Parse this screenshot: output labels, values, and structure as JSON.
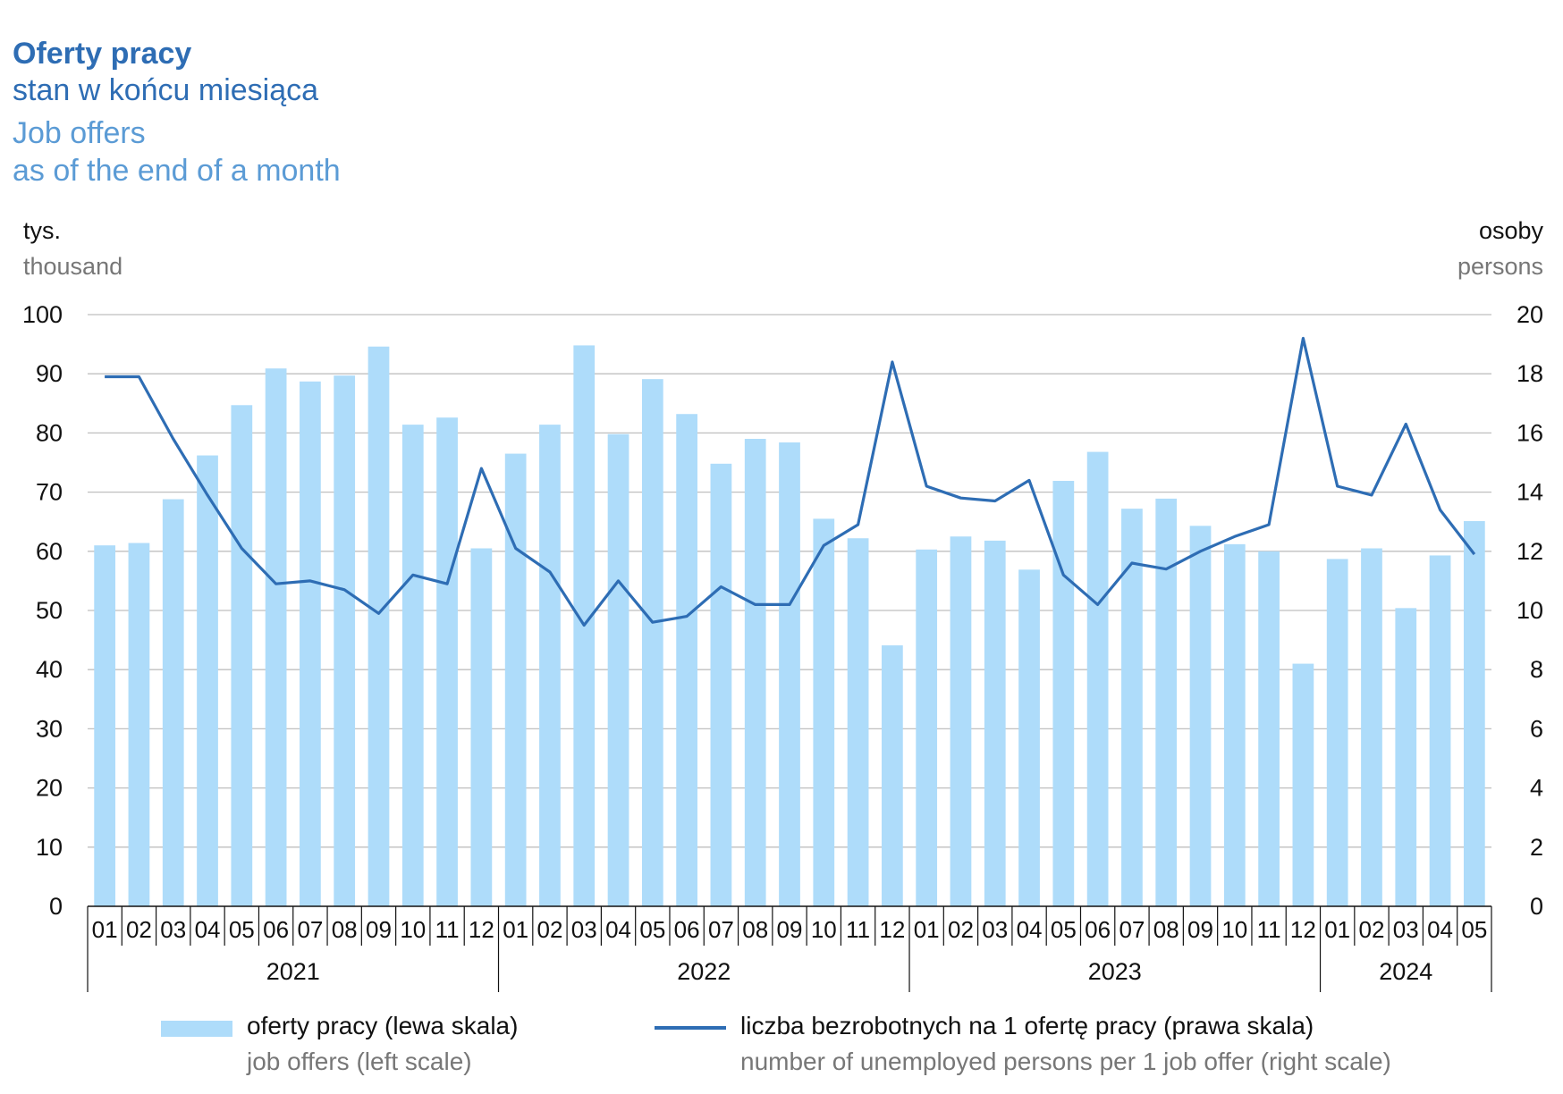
{
  "title": {
    "pl_bold": "Oferty pracy",
    "pl_sub": "stan w końcu miesiąca",
    "en_main": "Job offers",
    "en_sub": "as of the end of a month"
  },
  "units": {
    "left_pl": "tys.",
    "left_en": "thousand",
    "right_pl": "osoby",
    "right_en": "persons"
  },
  "legend": {
    "bar_pl": "oferty pracy (lewa skala)",
    "bar_en": "job offers (left scale)",
    "line_pl": "liczba bezrobotnych na 1 ofertę pracy (prawa skala)",
    "line_en": "number of unemployed persons per 1 job offer (right scale)"
  },
  "colors": {
    "bar": "#aedcfa",
    "line": "#2e6db4",
    "grid": "#bfbfbf"
  },
  "chart_data": {
    "type": "bar",
    "categories": [
      "01",
      "02",
      "03",
      "04",
      "05",
      "06",
      "07",
      "08",
      "09",
      "10",
      "11",
      "12",
      "01",
      "02",
      "03",
      "04",
      "05",
      "06",
      "07",
      "08",
      "09",
      "10",
      "11",
      "12",
      "01",
      "02",
      "03",
      "04",
      "05",
      "06",
      "07",
      "08",
      "09",
      "10",
      "11",
      "12",
      "01",
      "02",
      "03",
      "04",
      "05"
    ],
    "years": [
      {
        "label": "2021",
        "months": 12
      },
      {
        "label": "2022",
        "months": 12
      },
      {
        "label": "2023",
        "months": 12
      },
      {
        "label": "2024",
        "months": 5
      }
    ],
    "series": [
      {
        "type": "bar",
        "axis": "left",
        "values": [
          61.0,
          61.4,
          68.8,
          76.2,
          84.7,
          90.9,
          88.7,
          89.7,
          94.6,
          81.4,
          82.6,
          60.5,
          76.5,
          81.4,
          94.8,
          79.8,
          89.1,
          83.2,
          74.8,
          79.0,
          78.4,
          65.5,
          62.2,
          44.1,
          60.3,
          62.5,
          61.8,
          56.9,
          71.9,
          76.8,
          67.2,
          68.9,
          64.3,
          61.2,
          60.0,
          41.0,
          58.7,
          60.5,
          50.4,
          59.3,
          65.1
        ]
      },
      {
        "type": "line",
        "axis": "right",
        "values": [
          17.9,
          17.9,
          15.8,
          13.9,
          12.1,
          10.9,
          11.0,
          10.7,
          9.9,
          11.2,
          10.9,
          14.8,
          12.1,
          11.3,
          9.5,
          11.0,
          9.6,
          9.8,
          10.8,
          10.2,
          10.2,
          12.2,
          12.9,
          18.4,
          14.2,
          13.8,
          13.7,
          14.4,
          11.2,
          10.2,
          11.6,
          11.4,
          12.0,
          12.5,
          12.9,
          19.2,
          14.2,
          13.9,
          16.3,
          13.4,
          11.9
        ]
      }
    ],
    "ylim_left": [
      0,
      100
    ],
    "ylim_right": [
      0,
      20
    ],
    "yticks_left": [
      "0",
      "10",
      "20",
      "30",
      "40",
      "50",
      "60",
      "70",
      "80",
      "90",
      "100"
    ],
    "yticks_right": [
      "0",
      "2",
      "4",
      "6",
      "8",
      "10",
      "12",
      "14",
      "16",
      "18",
      "20"
    ],
    "grid": true,
    "legend_position": "bottom"
  }
}
